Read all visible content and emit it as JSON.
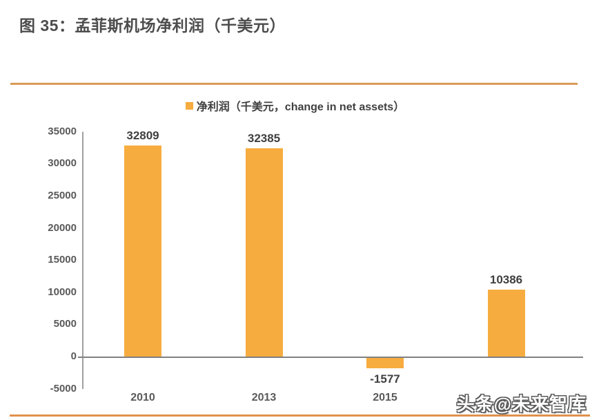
{
  "page": {
    "title": "图 35：孟菲斯机场净利润（千美元）",
    "watermark": "头条@未来智库"
  },
  "colors": {
    "bar": "#F6AC3E",
    "accent_line_top": "#D99A56",
    "accent_line_bottom": "#E0914C",
    "title_text": "#4D4D4D",
    "axis_text": "#595959",
    "data_label_text": "#3F3F3F",
    "axis_line": "#A0A0A0"
  },
  "chart_data": {
    "type": "bar",
    "title": "",
    "legend": [
      "净利润（千美元，change in net assets）"
    ],
    "legend_position": "top-center",
    "categories": [
      "2010",
      "2013",
      "2015",
      ""
    ],
    "values": [
      32809,
      32385,
      -1577,
      10386
    ],
    "data_labels": [
      "32809",
      "32385",
      "-1577",
      "10386"
    ],
    "ylim": [
      -5000,
      35000
    ],
    "yticks": [
      -5000,
      0,
      5000,
      10000,
      15000,
      20000,
      25000,
      30000,
      35000
    ],
    "grid": false
  }
}
